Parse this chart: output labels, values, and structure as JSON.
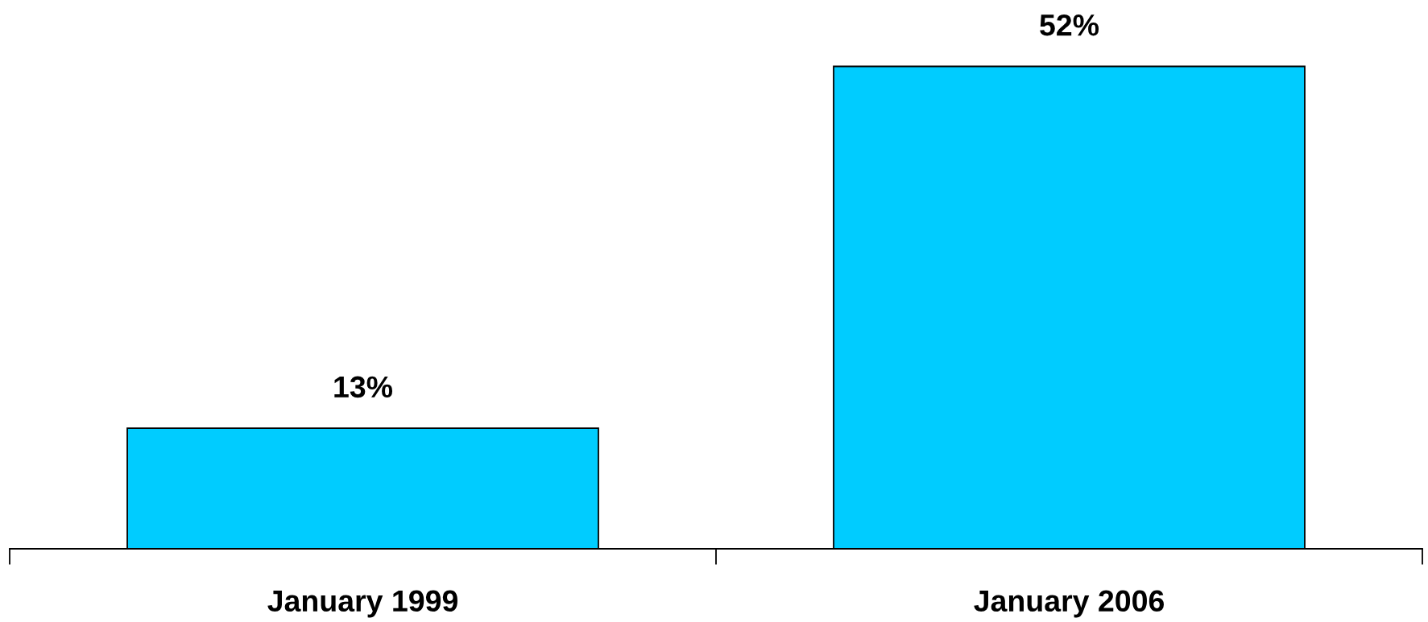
{
  "chart_data": {
    "type": "bar",
    "categories": [
      "January 1999",
      "January 2006"
    ],
    "values": [
      13,
      52
    ],
    "color": "#00ccff",
    "data_labels": true,
    "value_labels": [
      "13%",
      "52%"
    ],
    "grid": false,
    "legend": false
  }
}
